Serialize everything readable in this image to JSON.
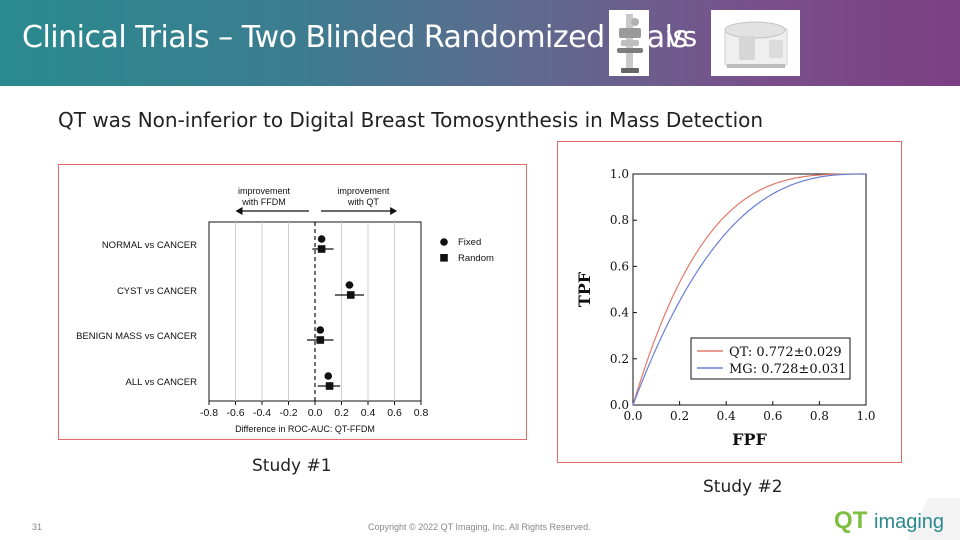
{
  "slide": {
    "title": "Clinical Trials – Two Blinded Randomized Trials",
    "vs": "vs",
    "subtitle": "QT was Non-inferior to Digital Breast Tomosynthesis in Mass Detection",
    "caption1": "Study #1",
    "caption2": "Study #2",
    "page_number": "31",
    "copyright": "Copyright © 2022 QT Imaging, Inc. All Rights Reserved.",
    "logo_text_q": "QT",
    "logo_text_rest": "imaging"
  },
  "colors": {
    "header_start": "#2a8a8f",
    "header_end": "#7b3f83",
    "panel_border": "#e06a6a",
    "qt_curve": "#e07b6a",
    "mg_curve": "#6a7fd6",
    "logo_green": "#7fbf3f",
    "logo_teal": "#2a8a8f"
  },
  "chart_data": [
    {
      "type": "scatter",
      "xlabel": "Difference in ROC-AUC: QT-FFDM",
      "xlim": [
        -0.8,
        0.8
      ],
      "xticks": [
        "-0.8",
        "-0.6",
        "-0.4",
        "-0.2",
        "0.0",
        "0.2",
        "0.4",
        "0.6",
        "0.8"
      ],
      "annotations": [
        "improvement with FFDM",
        "improvement with QT"
      ],
      "annotation_lines": [
        [
          "improvement",
          "with FFDM"
        ],
        [
          "improvement",
          "with QT"
        ]
      ],
      "categories": [
        "NORMAL vs CANCER",
        "CYST vs CANCER",
        "BENIGN MASS vs CANCER",
        "ALL vs CANCER"
      ],
      "legend": [
        "Fixed",
        "Random"
      ],
      "series": [
        {
          "name": "Fixed",
          "marker": "circle",
          "values": [
            0.05,
            0.26,
            0.04,
            0.1
          ],
          "ci_low": [
            0.03,
            0.23,
            0.02,
            0.08
          ],
          "ci_high": [
            0.07,
            0.29,
            0.06,
            0.12
          ]
        },
        {
          "name": "Random",
          "marker": "square",
          "values": [
            0.05,
            0.27,
            0.04,
            0.11
          ],
          "ci_low": [
            -0.02,
            0.15,
            -0.06,
            0.02
          ],
          "ci_high": [
            0.14,
            0.37,
            0.14,
            0.19
          ]
        }
      ],
      "grid": "vertical"
    },
    {
      "type": "line",
      "xlabel": "FPF",
      "ylabel": "TPF",
      "xlim": [
        0.0,
        1.0
      ],
      "ylim": [
        0.0,
        1.0
      ],
      "xticks": [
        "0.0",
        "0.2",
        "0.4",
        "0.6",
        "0.8",
        "1.0"
      ],
      "yticks": [
        "0.0",
        "0.2",
        "0.4",
        "0.6",
        "0.8",
        "1.0"
      ],
      "legend_placement": "bottom-right",
      "series": [
        {
          "name": "QT: 0.772±0.029",
          "auc": 0.772
        },
        {
          "name": "MG: 0.728±0.031",
          "auc": 0.728
        }
      ]
    }
  ]
}
